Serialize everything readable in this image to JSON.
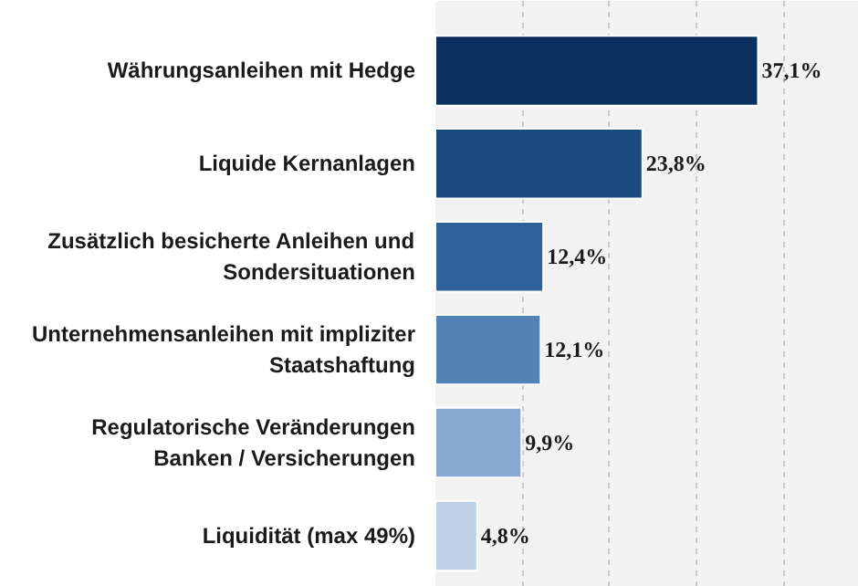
{
  "chart_data": {
    "type": "bar",
    "orientation": "horizontal",
    "categories": [
      "Währungsanleihen mit Hedge",
      "Liquide Kernanlagen",
      "Zusätzlich besicherte Anleihen und\nSondersituationen",
      "Unternehmensanleihen mit impliziter\nStaatshaftung",
      "Regulatorische Veränderungen\nBanken / Versicherungen",
      "Liquidität (max 49%)"
    ],
    "values": [
      37.1,
      23.8,
      12.4,
      12.1,
      9.9,
      4.8
    ],
    "value_labels": [
      "37,1%",
      "23,8%",
      "12,4%",
      "12,1%",
      "9,9%",
      "4,8%"
    ],
    "colors": [
      "#0b2f5f",
      "#1b4a80",
      "#2f619a",
      "#5282b6",
      "#89aad0",
      "#bed1e8"
    ],
    "xlim": [
      0,
      48.7
    ],
    "xticks": [
      {
        "value": 0,
        "label": null
      },
      {
        "value": 10,
        "label": null
      },
      {
        "value": 20,
        "label": null
      },
      {
        "value": 30,
        "label": null
      },
      {
        "value": 40,
        "label": null
      }
    ],
    "grid": "x",
    "tick_labels": "y"
  }
}
